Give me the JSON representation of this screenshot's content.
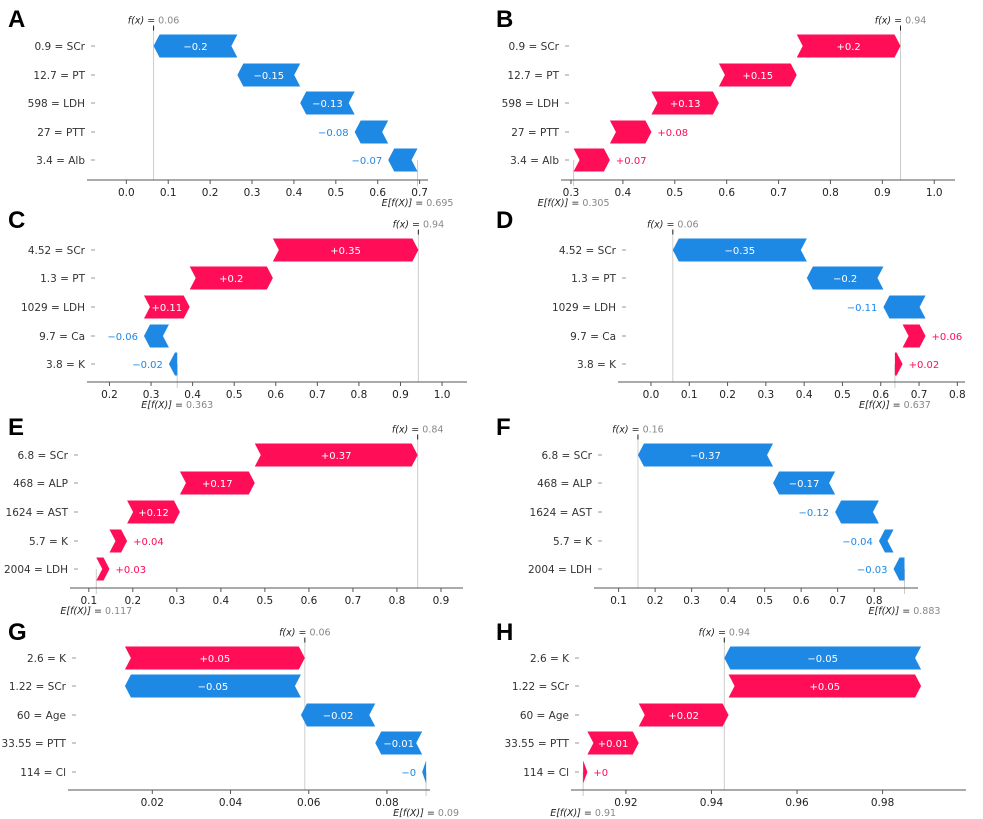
{
  "colors": {
    "positive": "#ff0d57",
    "negative": "#1e88e5",
    "axis": "#555555",
    "guide": "#cccccc"
  },
  "chart_data": [
    {
      "type": "bar",
      "subtype": "waterfall",
      "panel": "A",
      "fx_value": "0.06",
      "efx_value": "0.695",
      "xlim": [
        -0.07,
        0.72
      ],
      "ticks": [
        0.0,
        0.1,
        0.2,
        0.3,
        0.4,
        0.5,
        0.6,
        0.7
      ],
      "tick_labels": [
        "0.0",
        "0.1",
        "0.2",
        "0.3",
        "0.4",
        "0.5",
        "0.6",
        "0.7"
      ],
      "base": 0.695,
      "features": [
        {
          "label": "0.9 = SCr",
          "value": -0.2,
          "text": "−0.2"
        },
        {
          "label": "12.7 = PT",
          "value": -0.15,
          "text": "−0.15"
        },
        {
          "label": "598 = LDH",
          "value": -0.13,
          "text": "−0.13"
        },
        {
          "label": "27 = PTT",
          "value": -0.08,
          "text": "−0.08"
        },
        {
          "label": "3.4 = Alb",
          "value": -0.07,
          "text": "−0.07"
        }
      ]
    },
    {
      "type": "bar",
      "subtype": "waterfall",
      "panel": "B",
      "fx_value": "0.94",
      "efx_value": "0.305",
      "xlim": [
        0.3,
        1.04
      ],
      "ticks": [
        0.3,
        0.4,
        0.5,
        0.6,
        0.7,
        0.8,
        0.9,
        1.0
      ],
      "tick_labels": [
        "0.3",
        "0.4",
        "0.5",
        "0.6",
        "0.7",
        "0.8",
        "0.9",
        "1.0"
      ],
      "base": 0.305,
      "features": [
        {
          "label": "0.9 = SCr",
          "value": 0.2,
          "text": "+0.2"
        },
        {
          "label": "12.7 = PT",
          "value": 0.15,
          "text": "+0.15"
        },
        {
          "label": "598 = LDH",
          "value": 0.13,
          "text": "+0.13"
        },
        {
          "label": "27 = PTT",
          "value": 0.08,
          "text": "+0.08"
        },
        {
          "label": "3.4 = Alb",
          "value": 0.07,
          "text": "+0.07"
        }
      ]
    },
    {
      "type": "bar",
      "subtype": "waterfall",
      "panel": "C",
      "fx_value": "0.94",
      "efx_value": "0.363",
      "xlim": [
        0.17,
        1.06
      ],
      "ticks": [
        0.2,
        0.3,
        0.4,
        0.5,
        0.6,
        0.7,
        0.8,
        0.9,
        1.0
      ],
      "tick_labels": [
        "0.2",
        "0.3",
        "0.4",
        "0.5",
        "0.6",
        "0.7",
        "0.8",
        "0.9",
        "1.0"
      ],
      "base": 0.363,
      "features": [
        {
          "label": "4.52 = SCr",
          "value": 0.35,
          "text": "+0.35"
        },
        {
          "label": "1.3 = PT",
          "value": 0.2,
          "text": "+0.2"
        },
        {
          "label": "1029 = LDH",
          "value": 0.11,
          "text": "+0.11"
        },
        {
          "label": "9.7 = Ca",
          "value": -0.06,
          "text": "−0.06"
        },
        {
          "label": "3.8 = K",
          "value": -0.02,
          "text": "−0.02"
        }
      ]
    },
    {
      "type": "bar",
      "subtype": "waterfall",
      "panel": "D",
      "fx_value": "0.06",
      "efx_value": "0.637",
      "xlim": [
        -0.06,
        0.82
      ],
      "ticks": [
        0.0,
        0.1,
        0.2,
        0.3,
        0.4,
        0.5,
        0.6,
        0.7,
        0.8
      ],
      "tick_labels": [
        "0.0",
        "0.1",
        "0.2",
        "0.3",
        "0.4",
        "0.5",
        "0.6",
        "0.7",
        "0.8"
      ],
      "base": 0.637,
      "features": [
        {
          "label": "4.52 = SCr",
          "value": -0.35,
          "text": "−0.35"
        },
        {
          "label": "1.3 = PT",
          "value": -0.2,
          "text": "−0.2"
        },
        {
          "label": "1029 = LDH",
          "value": -0.11,
          "text": "−0.11"
        },
        {
          "label": "9.7 = Ca",
          "value": 0.06,
          "text": "+0.06"
        },
        {
          "label": "3.8 = K",
          "value": 0.02,
          "text": "+0.02"
        }
      ]
    },
    {
      "type": "bar",
      "subtype": "waterfall",
      "panel": "E",
      "fx_value": "0.84",
      "efx_value": "0.117",
      "xlim": [
        0.08,
        0.95
      ],
      "ticks": [
        0.1,
        0.2,
        0.3,
        0.4,
        0.5,
        0.6,
        0.7,
        0.8,
        0.9
      ],
      "tick_labels": [
        "0.1",
        "0.2",
        "0.3",
        "0.4",
        "0.5",
        "0.6",
        "0.7",
        "0.8",
        "0.9"
      ],
      "base": 0.117,
      "features": [
        {
          "label": "6.8 = SCr",
          "value": 0.37,
          "text": "+0.37"
        },
        {
          "label": "468 = ALP",
          "value": 0.17,
          "text": "+0.17"
        },
        {
          "label": "1624 = AST",
          "value": 0.12,
          "text": "+0.12"
        },
        {
          "label": "5.7 = K",
          "value": 0.04,
          "text": "+0.04"
        },
        {
          "label": "2004 = LDH",
          "value": 0.03,
          "text": "+0.03"
        }
      ]
    },
    {
      "type": "bar",
      "subtype": "waterfall",
      "panel": "F",
      "fx_value": "0.16",
      "efx_value": "0.883",
      "xlim": [
        0.06,
        0.92
      ],
      "ticks": [
        0.1,
        0.2,
        0.3,
        0.4,
        0.5,
        0.6,
        0.7,
        0.8
      ],
      "tick_labels": [
        "0.1",
        "0.2",
        "0.3",
        "0.4",
        "0.5",
        "0.6",
        "0.7",
        "0.8"
      ],
      "base": 0.883,
      "features": [
        {
          "label": "6.8 = SCr",
          "value": -0.37,
          "text": "−0.37"
        },
        {
          "label": "468 = ALP",
          "value": -0.17,
          "text": "−0.17"
        },
        {
          "label": "1624 = AST",
          "value": -0.12,
          "text": "−0.12"
        },
        {
          "label": "5.7 = K",
          "value": -0.04,
          "text": "−0.04"
        },
        {
          "label": "2004 = LDH",
          "value": -0.03,
          "text": "−0.03"
        }
      ]
    },
    {
      "type": "bar",
      "subtype": "waterfall",
      "panel": "G",
      "fx_value": "0.06",
      "efx_value": "0.09",
      "xlim": [
        0.001,
        0.091
      ],
      "ticks": [
        0.02,
        0.04,
        0.06,
        0.08
      ],
      "tick_labels": [
        "0.02",
        "0.04",
        "0.06",
        "0.08"
      ],
      "base": 0.09,
      "features": [
        {
          "label": "2.6 = K",
          "value": 0.046,
          "text": "+0.05"
        },
        {
          "label": "1.22 = SCr",
          "value": -0.045,
          "text": "−0.05"
        },
        {
          "label": "60 = Age",
          "value": -0.019,
          "text": "−0.02"
        },
        {
          "label": "33.55 = PTT",
          "value": -0.012,
          "text": "−0.01"
        },
        {
          "label": "114 = Cl",
          "value": -0.001,
          "text": "−0"
        }
      ]
    },
    {
      "type": "bar",
      "subtype": "waterfall",
      "panel": "H",
      "fx_value": "0.94",
      "efx_value": "0.91",
      "xlim": [
        0.9095,
        0.9995
      ],
      "ticks": [
        0.92,
        0.94,
        0.96,
        0.98
      ],
      "tick_labels": [
        "0.92",
        "0.94",
        "0.96",
        "0.98"
      ],
      "base": 0.91,
      "features": [
        {
          "label": "2.6 = K",
          "value": -0.046,
          "text": "−0.05"
        },
        {
          "label": "1.22 = SCr",
          "value": 0.045,
          "text": "+0.05"
        },
        {
          "label": "60 = Age",
          "value": 0.021,
          "text": "+0.02"
        },
        {
          "label": "33.55 = PTT",
          "value": 0.012,
          "text": "+0.01"
        },
        {
          "label": "114 = Cl",
          "value": 0.001,
          "text": "+0"
        }
      ]
    }
  ]
}
